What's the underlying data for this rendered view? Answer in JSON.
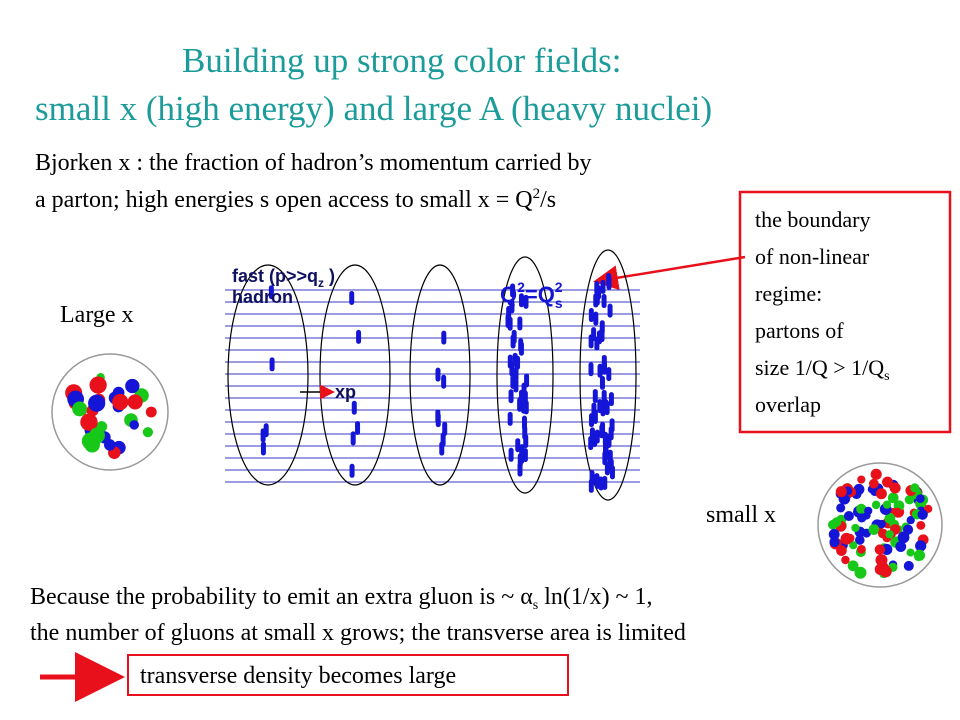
{
  "header": {
    "title_line1": "Building up strong color fields:",
    "title_line2": "small x (high energy) and large A (heavy nuclei)"
  },
  "intro": {
    "line1": "Bjorken x : the fraction of hadron’s momentum carried by",
    "line2": "a parton; high energies s open access to small x = Q",
    "line2_sup": "2",
    "line2_end": "/s"
  },
  "callout": {
    "lines": [
      "the boundary",
      "of non-linear",
      "regime:",
      "partons of",
      "size 1/Q > 1/Q",
      "overlap"
    ],
    "sub": "s"
  },
  "labels": {
    "large_x": "Large x",
    "small_x": "small x"
  },
  "diagram": {
    "fast": "fast (p>>q",
    "fast_sub": "z",
    "fast_end": " )",
    "hadron": "hadron",
    "xp": "xp",
    "q": "Q",
    "q_sup": "2",
    "eq": "=Q",
    "qs_sub": "s",
    "qs_sup": "2"
  },
  "bottom": {
    "line1": "Because the probability to emit an extra gluon is ~ ",
    "alpha": "α",
    "alpha_sub": "s",
    "line1_end": " ln(1/x) ~ 1,",
    "line2": "the number of gluons at small x grows; the transverse area is limited",
    "conclusion": "transverse density becomes large"
  }
}
